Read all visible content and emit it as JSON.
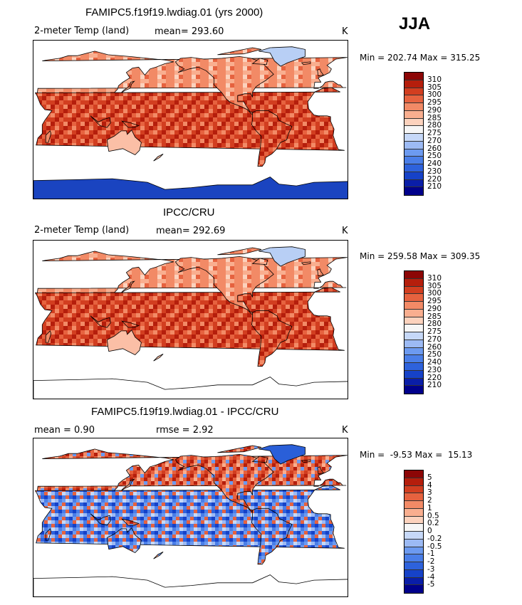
{
  "season": "JJA",
  "panels": [
    {
      "title": "FAMIPC5.f19f19.lwdiag.01 (yrs 2000)",
      "left_label": "2-meter Temp (land)",
      "center_label": "mean= 293.60",
      "units": "K",
      "minmax": "Min = 202.74 Max = 315.25",
      "scale": "abs"
    },
    {
      "title": "IPCC/CRU",
      "left_label": "2-meter Temp (land)",
      "center_label": "mean= 292.69",
      "units": "K",
      "minmax": "Min = 259.58 Max = 309.35",
      "scale": "abs"
    },
    {
      "title": "FAMIPC5.f19f19.lwdiag.01 - IPCC/CRU",
      "left_label": "mean =    0.90",
      "center_label": "rmse =    2.92",
      "units": "K",
      "minmax": "Min =  -9.53 Max =  15.13",
      "scale": "diff"
    }
  ],
  "chart_data": [
    {
      "type": "heatmap",
      "title": "FAMIPC5.f19f19.lwdiag.01 (yrs 2000)",
      "variable": "2-meter Temp (land)",
      "units": "K",
      "mean": 293.6,
      "min": 202.74,
      "max": 315.25,
      "colorbar_levels": [
        210,
        220,
        230,
        240,
        250,
        260,
        270,
        275,
        280,
        285,
        290,
        295,
        300,
        305,
        310
      ],
      "colors": [
        "#00008b",
        "#0a1ea8",
        "#1642c8",
        "#2e62dc",
        "#4a7ee8",
        "#6c9af0",
        "#9cbaf4",
        "#c6d8f8",
        "#f6f6f6",
        "#fcd2bd",
        "#f9ae8f",
        "#f28a66",
        "#e6623f",
        "#d23e20",
        "#b51e0c",
        "#8c0606"
      ]
    },
    {
      "type": "heatmap",
      "title": "IPCC/CRU",
      "variable": "2-meter Temp (land)",
      "units": "K",
      "mean": 292.69,
      "min": 259.58,
      "max": 309.35,
      "colorbar_levels": [
        210,
        220,
        230,
        240,
        250,
        260,
        270,
        275,
        280,
        285,
        290,
        295,
        300,
        305,
        310
      ],
      "colors": [
        "#00008b",
        "#0a1ea8",
        "#1642c8",
        "#2e62dc",
        "#4a7ee8",
        "#6c9af0",
        "#9cbaf4",
        "#c6d8f8",
        "#f6f6f6",
        "#fcd2bd",
        "#f9ae8f",
        "#f28a66",
        "#e6623f",
        "#d23e20",
        "#b51e0c",
        "#8c0606"
      ]
    },
    {
      "type": "heatmap",
      "title": "FAMIPC5.f19f19.lwdiag.01 - IPCC/CRU",
      "units": "K",
      "mean": 0.9,
      "rmse": 2.92,
      "min": -9.53,
      "max": 15.13,
      "colorbar_levels": [
        "-5",
        "-4",
        "-3",
        "-2",
        "-1",
        "-0.5",
        "-0.2",
        "0",
        "0.2",
        "0.5",
        "1",
        "2",
        "3",
        "4",
        "5"
      ],
      "colors": [
        "#00008b",
        "#0a1ea8",
        "#1642c8",
        "#2e62dc",
        "#4a7ee8",
        "#6c9af0",
        "#9cbaf4",
        "#c6d8f8",
        "#f6f6f6",
        "#fcd2bd",
        "#f9ae8f",
        "#f28a66",
        "#e6623f",
        "#d23e20",
        "#b51e0c",
        "#8c0606"
      ]
    }
  ]
}
